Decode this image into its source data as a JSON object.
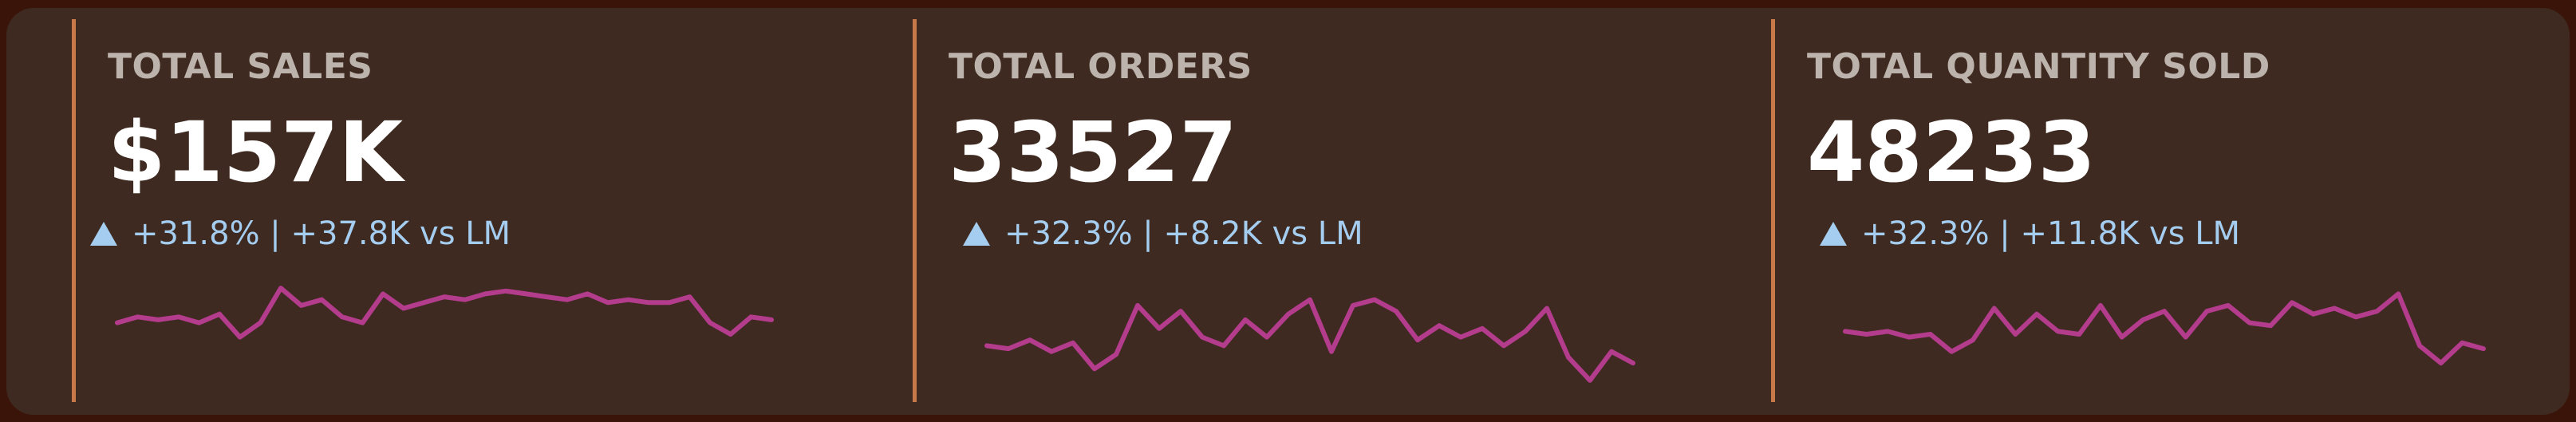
{
  "cards": [
    {
      "title": "TOTAL SALES",
      "value": "$157K",
      "change": "+31.8% | +37.8K vs LM",
      "trend_icon": "triangle-up-icon",
      "sparkline": [
        60,
        62,
        61,
        62,
        60,
        63,
        55,
        60,
        72,
        66,
        68,
        62,
        60,
        70,
        65,
        67,
        69,
        68,
        70,
        71,
        70,
        69,
        68,
        70,
        67,
        68,
        67,
        67,
        69,
        60,
        56,
        62,
        61
      ]
    },
    {
      "title": "TOTAL ORDERS",
      "value": "33527",
      "change": "+32.3% | +8.2K vs LM",
      "trend_icon": "triangle-up-icon",
      "sparkline": [
        52,
        51,
        54,
        50,
        53,
        44,
        49,
        66,
        58,
        64,
        55,
        52,
        61,
        55,
        63,
        68,
        50,
        66,
        68,
        64,
        54,
        59,
        55,
        58,
        52,
        57,
        65,
        48,
        40,
        50,
        46
      ]
    },
    {
      "title": "TOTAL QUANTITY SOLD",
      "value": "48233",
      "change": "+32.3% | +11.8K vs LM",
      "trend_icon": "triangle-up-icon",
      "sparkline": [
        57,
        56,
        57,
        55,
        56,
        50,
        54,
        65,
        56,
        63,
        57,
        56,
        66,
        55,
        61,
        64,
        55,
        64,
        66,
        60,
        59,
        67,
        63,
        65,
        62,
        64,
        70,
        52,
        46,
        53,
        51
      ]
    }
  ],
  "colors": {
    "background": "#3a1408",
    "panel": "#3e2a20",
    "card_border": "#c8794a",
    "title": "#bdb3ad",
    "value": "#ffffff",
    "change": "#a5cdf0",
    "sparkline": "#b43c8c"
  }
}
